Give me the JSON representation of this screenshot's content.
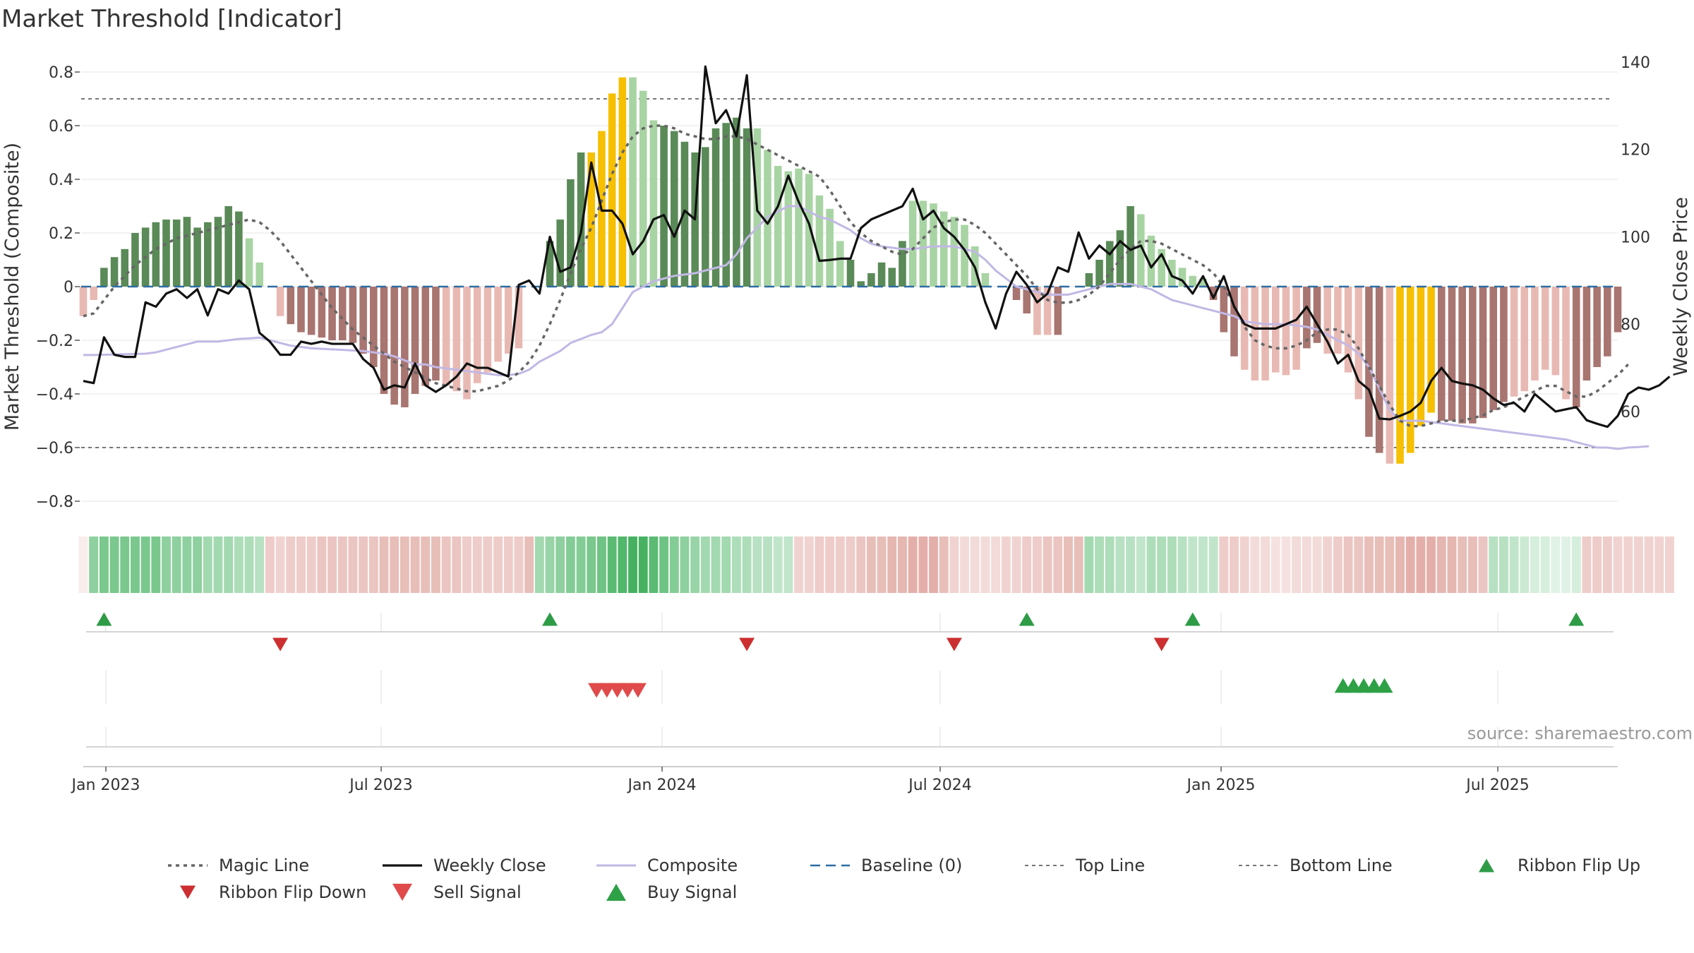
{
  "title": "Market Threshold [Indicator]",
  "source": "source: sharemaestro.com",
  "colors": {
    "strong_pos": "#5a8a57",
    "weak_pos": "#a8d4a3",
    "strong_neg": "#a87570",
    "weak_neg": "#e8b9b3",
    "extreme": "#f6bf00",
    "magic": "#666666",
    "close": "#111111",
    "composite": "#c2b8e4",
    "baseline": "#2e6da4",
    "ref": "#777777",
    "flip_up": "#2e9b47",
    "flip_down": "#cc2f2f",
    "sell": "#e04a4a",
    "buy": "#2ea046"
  },
  "chart_data": {
    "type": "bar",
    "title": "Market Threshold [Indicator]",
    "ylabel": "Market Threshold (Composite)",
    "y2label": "Weekly Close Price",
    "ylim": [
      -0.85,
      0.85
    ],
    "y2lim": [
      49,
      140
    ],
    "yticks": [
      0.8,
      0.6,
      0.4,
      0.2,
      0,
      -0.2,
      -0.4,
      -0.6,
      -0.8
    ],
    "ytick_labels": [
      "0.8",
      "0.6",
      "0.4",
      "0.2",
      "0",
      "−0.2",
      "−0.4",
      "−0.6",
      "−0.8"
    ],
    "y2ticks": [
      140,
      120,
      100,
      80,
      60
    ],
    "xticks": [
      "Jan 2023",
      "Jul 2023",
      "Jan 2024",
      "Jul 2024",
      "Jan 2025",
      "Jul 2025"
    ],
    "top_line": 0.7,
    "bottom_line": -0.6,
    "baseline": 0,
    "legend": [
      {
        "label": "Magic Line",
        "kind": "dotted"
      },
      {
        "label": "Weekly Close",
        "kind": "solid"
      },
      {
        "label": "Composite",
        "kind": "composite"
      },
      {
        "label": "Baseline (0)",
        "kind": "dashed"
      },
      {
        "label": "Top Line",
        "kind": "thin-dotted"
      },
      {
        "label": "Bottom Line",
        "kind": "thin-dotted"
      },
      {
        "label": "Ribbon Flip Up",
        "kind": "tri-up-small"
      },
      {
        "label": "Ribbon Flip Down",
        "kind": "tri-down-small"
      },
      {
        "label": "Sell Signal",
        "kind": "tri-down"
      },
      {
        "label": "Buy Signal",
        "kind": "tri-up"
      }
    ],
    "bars": [
      -0.11,
      -0.05,
      0.07,
      0.11,
      0.14,
      0.2,
      0.22,
      0.24,
      0.25,
      0.25,
      0.26,
      0.22,
      0.24,
      0.26,
      0.3,
      0.28,
      0.18,
      0.09,
      0,
      -0.11,
      -0.14,
      -0.17,
      -0.18,
      -0.19,
      -0.2,
      -0.2,
      -0.21,
      -0.25,
      -0.3,
      -0.4,
      -0.44,
      -0.45,
      -0.4,
      -0.37,
      -0.35,
      -0.37,
      -0.39,
      -0.42,
      -0.36,
      -0.32,
      -0.28,
      -0.25,
      -0.23,
      0,
      0,
      0.17,
      0.25,
      0.4,
      0.5,
      0.5,
      0.58,
      0.72,
      0.78,
      0.78,
      0.73,
      0.62,
      0.6,
      0.58,
      0.54,
      0.5,
      0.52,
      0.59,
      0.61,
      0.63,
      0.59,
      0.59,
      0.51,
      0.45,
      0.43,
      0.44,
      0.42,
      0.34,
      0.29,
      0.17,
      0.1,
      0.02,
      0.05,
      0.09,
      0.07,
      0.17,
      0.32,
      0.32,
      0.31,
      0.28,
      0.26,
      0.23,
      0.15,
      0.05,
      0,
      0,
      -0.05,
      -0.1,
      -0.18,
      -0.18,
      -0.18,
      0,
      0,
      0.05,
      0.1,
      0.17,
      0.21,
      0.3,
      0.27,
      0.19,
      0.14,
      0.1,
      0.07,
      0.04,
      0.03,
      -0.05,
      -0.17,
      -0.26,
      -0.31,
      -0.35,
      -0.35,
      -0.32,
      -0.33,
      -0.31,
      -0.23,
      -0.21,
      -0.25,
      -0.25,
      -0.32,
      -0.42,
      -0.56,
      -0.62,
      -0.66,
      -0.66,
      -0.62,
      -0.52,
      -0.47,
      -0.5,
      -0.5,
      -0.51,
      -0.51,
      -0.49,
      -0.46,
      -0.43,
      -0.41,
      -0.39,
      -0.35,
      -0.31,
      -0.33,
      -0.42,
      -0.45,
      -0.35,
      -0.3,
      -0.26,
      -0.17
    ],
    "bar_classes": "nnsssssssssssssswwnnssssssssssssssswwwwwwwnnsssssxxxxwwwssssssssswwwwwwwwwsssssswwwwwwwwwsssnnsssssssswwwwwwwssswwwwwwsswwwwsswxxxxssssssswwwwwwsssssswwww",
    "weekly_close": [
      67,
      66.5,
      77,
      73,
      72.5,
      72.5,
      85,
      84,
      87,
      88,
      86,
      88,
      82,
      88,
      87,
      90,
      88,
      78,
      76,
      73,
      73,
      76,
      75.5,
      76,
      75.5,
      75.5,
      75.5,
      72,
      70,
      65,
      66,
      65.5,
      71,
      66,
      64.5,
      66,
      68,
      71,
      70,
      70,
      69,
      68,
      89,
      90,
      87,
      100,
      92,
      93,
      101,
      117,
      106,
      106,
      103,
      96,
      99,
      104,
      105,
      100,
      106,
      104,
      139,
      126,
      129,
      123,
      137,
      106,
      103,
      107,
      114,
      108,
      103,
      94.5,
      94.7,
      95,
      95,
      102,
      104,
      105,
      106,
      107,
      111,
      104,
      106,
      102,
      100,
      97,
      93,
      85,
      79,
      87,
      92,
      89,
      85,
      87,
      93,
      92,
      101,
      95,
      98,
      96,
      99,
      97,
      98,
      93,
      96,
      91,
      90,
      87,
      91,
      86,
      91,
      84,
      80,
      79,
      79,
      79,
      80,
      81,
      84,
      80,
      76,
      71,
      73,
      67,
      65,
      58.4,
      58.2,
      59,
      60,
      62,
      67,
      70,
      67,
      66.4,
      66,
      65,
      63,
      61.5,
      62,
      60,
      64,
      62,
      60,
      60.5,
      61,
      58,
      57.2,
      56.5,
      59,
      64,
      65.5,
      65,
      66,
      68
    ],
    "composite": [
      -0.255,
      -0.255,
      -0.254,
      -0.253,
      -0.252,
      -0.251,
      -0.25,
      -0.245,
      -0.235,
      -0.225,
      -0.215,
      -0.205,
      -0.205,
      -0.205,
      -0.2,
      -0.195,
      -0.193,
      -0.19,
      -0.2,
      -0.21,
      -0.22,
      -0.225,
      -0.23,
      -0.232,
      -0.234,
      -0.236,
      -0.238,
      -0.24,
      -0.245,
      -0.25,
      -0.26,
      -0.275,
      -0.29,
      -0.29,
      -0.3,
      -0.305,
      -0.31,
      -0.315,
      -0.32,
      -0.325,
      -0.33,
      -0.33,
      -0.325,
      -0.31,
      -0.28,
      -0.26,
      -0.24,
      -0.21,
      -0.195,
      -0.18,
      -0.17,
      -0.14,
      -0.08,
      -0.02,
      0.0,
      0.02,
      0.03,
      0.04,
      0.045,
      0.05,
      0.06,
      0.07,
      0.08,
      0.12,
      0.18,
      0.22,
      0.26,
      0.28,
      0.3,
      0.3,
      0.28,
      0.26,
      0.25,
      0.23,
      0.21,
      0.18,
      0.16,
      0.15,
      0.145,
      0.14,
      0.14,
      0.145,
      0.15,
      0.15,
      0.15,
      0.14,
      0.13,
      0.1,
      0.06,
      0.03,
      0.0,
      -0.01,
      -0.02,
      -0.03,
      -0.03,
      -0.03,
      -0.02,
      -0.01,
      0.0,
      0.01,
      0.01,
      0.01,
      0.0,
      -0.01,
      -0.03,
      -0.05,
      -0.06,
      -0.07,
      -0.08,
      -0.09,
      -0.1,
      -0.11,
      -0.13,
      -0.135,
      -0.14,
      -0.14,
      -0.14,
      -0.145,
      -0.15,
      -0.16,
      -0.18,
      -0.2,
      -0.22,
      -0.25,
      -0.3,
      -0.38,
      -0.46,
      -0.5,
      -0.5,
      -0.5,
      -0.505,
      -0.51,
      -0.515,
      -0.52,
      -0.525,
      -0.53,
      -0.535,
      -0.54,
      -0.545,
      -0.55,
      -0.555,
      -0.56,
      -0.565,
      -0.57,
      -0.58,
      -0.59,
      -0.6,
      -0.6,
      -0.605,
      -0.6,
      -0.598,
      -0.595
    ],
    "magic_line": [
      -0.11,
      -0.1,
      -0.05,
      0.0,
      0.04,
      0.08,
      0.11,
      0.14,
      0.16,
      0.18,
      0.19,
      0.2,
      0.21,
      0.22,
      0.23,
      0.24,
      0.25,
      0.24,
      0.21,
      0.17,
      0.12,
      0.07,
      0.02,
      -0.03,
      -0.08,
      -0.12,
      -0.16,
      -0.19,
      -0.22,
      -0.25,
      -0.28,
      -0.3,
      -0.32,
      -0.34,
      -0.36,
      -0.37,
      -0.38,
      -0.39,
      -0.39,
      -0.38,
      -0.37,
      -0.35,
      -0.32,
      -0.28,
      -0.22,
      -0.14,
      -0.05,
      0.05,
      0.14,
      0.22,
      0.32,
      0.42,
      0.5,
      0.56,
      0.59,
      0.6,
      0.6,
      0.59,
      0.57,
      0.56,
      0.55,
      0.55,
      0.56,
      0.56,
      0.55,
      0.53,
      0.51,
      0.49,
      0.47,
      0.45,
      0.43,
      0.41,
      0.36,
      0.3,
      0.24,
      0.2,
      0.17,
      0.15,
      0.13,
      0.12,
      0.14,
      0.18,
      0.22,
      0.24,
      0.25,
      0.25,
      0.23,
      0.2,
      0.16,
      0.12,
      0.08,
      0.04,
      -0.01,
      -0.05,
      -0.06,
      -0.06,
      -0.05,
      -0.03,
      0.0,
      0.05,
      0.1,
      0.14,
      0.17,
      0.17,
      0.16,
      0.14,
      0.12,
      0.1,
      0.08,
      0.05,
      0.0,
      -0.07,
      -0.15,
      -0.2,
      -0.22,
      -0.23,
      -0.23,
      -0.22,
      -0.2,
      -0.17,
      -0.16,
      -0.16,
      -0.18,
      -0.23,
      -0.3,
      -0.37,
      -0.44,
      -0.5,
      -0.52,
      -0.52,
      -0.51,
      -0.5,
      -0.5,
      -0.5,
      -0.49,
      -0.48,
      -0.46,
      -0.45,
      -0.43,
      -0.41,
      -0.39,
      -0.37,
      -0.37,
      -0.39,
      -0.41,
      -0.41,
      -0.39,
      -0.36,
      -0.33,
      -0.29
    ],
    "ribbon_levels": [
      0.1,
      0.55,
      0.65,
      0.65,
      0.65,
      0.65,
      0.65,
      0.65,
      0.55,
      0.55,
      0.55,
      0.55,
      0.45,
      0.45,
      0.45,
      0.4,
      0.4,
      0.35,
      0.35,
      0.3,
      0.35,
      0.35,
      0.35,
      0.4,
      0.4,
      0.4,
      0.4,
      0.4,
      0.4,
      0.45,
      0.45,
      0.45,
      0.45,
      0.45,
      0.45,
      0.4,
      0.4,
      0.35,
      0.35,
      0.35,
      0.35,
      0.35,
      0.35,
      0.45,
      0.45,
      0.5,
      0.55,
      0.6,
      0.6,
      0.65,
      0.7,
      0.8,
      0.85,
      0.9,
      0.9,
      0.8,
      0.7,
      0.6,
      0.55,
      0.5,
      0.45,
      0.45,
      0.45,
      0.4,
      0.4,
      0.35,
      0.35,
      0.3,
      0.3,
      0.3,
      0.3,
      0.35,
      0.35,
      0.35,
      0.35,
      0.4,
      0.45,
      0.45,
      0.5,
      0.5,
      0.55,
      0.55,
      0.55,
      0.45,
      0.3,
      0.25,
      0.25,
      0.25,
      0.25,
      0.3,
      0.3,
      0.35,
      0.35,
      0.4,
      0.4,
      0.45,
      0.45,
      0.45,
      0.4,
      0.4,
      0.35,
      0.35,
      0.3,
      0.4,
      0.4,
      0.4,
      0.35,
      0.3,
      0.3,
      0.3,
      0.35,
      0.35,
      0.3,
      0.25,
      0.25,
      0.2,
      0.2,
      0.25,
      0.25,
      0.25,
      0.3,
      0.35,
      0.4,
      0.4,
      0.45,
      0.45,
      0.45,
      0.5,
      0.55,
      0.55,
      0.55,
      0.5,
      0.5,
      0.45,
      0.45,
      0.4,
      0.35,
      0.35,
      0.3,
      0.25,
      0.2,
      0.2,
      0.15,
      0.15,
      0.2,
      0.35,
      0.35,
      0.35,
      0.3,
      0.3,
      0.3,
      0.3,
      0.3,
      0.3
    ],
    "ribbon_signs": "npppppppppppppppppnnnnnnnnnnnnnnnnnnnnnnnnnnpppppppppppppppppppppppppnnnnnnnnnnnnnnnnnnnnnnnnnnnnpppppppppppppnnnnnnnnnnnnnnnnnnnnnnnnnnpppppppppnnnnnnnnnnnnnnnnnnnnnnnnnnnnnnnnnnnnnnnnnnpppppppppppp",
    "ribbon_flip_up_weeks": [
      2,
      45,
      91,
      107,
      144
    ],
    "ribbon_flip_down_weeks": [
      19,
      64,
      84,
      104
    ],
    "sell_signal_weeks": [
      49.5,
      50.5,
      51.5,
      52.5,
      53.5
    ],
    "buy_signal_weeks": [
      121.5,
      122.5,
      123.5,
      124.5,
      125.5
    ]
  }
}
